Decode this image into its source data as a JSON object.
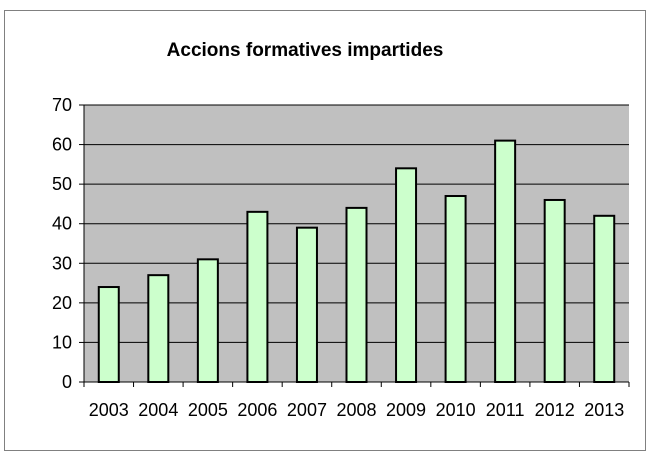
{
  "chart_data": {
    "type": "bar",
    "title": "Accions formatives impartides",
    "xlabel": "",
    "ylabel": "",
    "categories": [
      "2003",
      "2004",
      "2005",
      "2006",
      "2007",
      "2008",
      "2009",
      "2010",
      "2011",
      "2012",
      "2013"
    ],
    "values": [
      24,
      27,
      31,
      43,
      39,
      44,
      54,
      47,
      61,
      46,
      42
    ],
    "ylim": [
      0,
      70
    ],
    "yticks": [
      0,
      10,
      20,
      30,
      40,
      50,
      60,
      70
    ],
    "grid": true,
    "legend": "none",
    "colors": {
      "bar_fill": "#ccffcc",
      "bar_stroke": "#000000",
      "plot_background": "#c0c0c0",
      "gridline": "#000000"
    }
  }
}
